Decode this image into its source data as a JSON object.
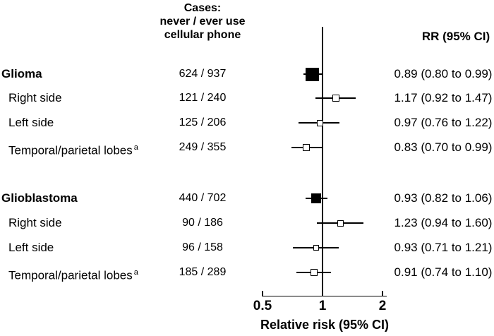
{
  "figure": {
    "background_color": "#ffffff",
    "text_color": "#000000"
  },
  "chart_data": {
    "type": "forest",
    "column_headers": {
      "cases": "Cases:\nnever / ever use\ncellular phone",
      "rr": "RR (95% CI)"
    },
    "axis": {
      "scale": "log",
      "xlim": [
        0.5,
        2
      ],
      "reference_line": 1,
      "xlabel": "Relative risk (95% CI)",
      "ticks": [
        {
          "value": 0.5,
          "label": "0.5"
        },
        {
          "value": 1,
          "label": "1"
        },
        {
          "value": 2,
          "label": "2"
        }
      ]
    },
    "rows": [
      {
        "label": "Glioma",
        "group_header": true,
        "indent": false,
        "footnote_mark": "",
        "cases_never_ever": "624 / 937",
        "rr": 0.89,
        "ci_low": 0.8,
        "ci_high": 0.99,
        "rr_text": "0.89 (0.80 to 0.99)",
        "marker": "filled-square",
        "marker_size_px": 19
      },
      {
        "label": "Right side",
        "group_header": false,
        "indent": true,
        "footnote_mark": "",
        "cases_never_ever": "121 / 240",
        "rr": 1.17,
        "ci_low": 0.92,
        "ci_high": 1.47,
        "rr_text": "1.17 (0.92 to 1.47)",
        "marker": "open-square",
        "marker_size_px": 10
      },
      {
        "label": "Left side",
        "group_header": false,
        "indent": true,
        "footnote_mark": "",
        "cases_never_ever": "125 / 206",
        "rr": 0.97,
        "ci_low": 0.76,
        "ci_high": 1.22,
        "rr_text": "0.97 (0.76 to 1.22)",
        "marker": "open-square",
        "marker_size_px": 9
      },
      {
        "label": "Temporal/parietal lobes",
        "group_header": false,
        "indent": true,
        "footnote_mark": "a",
        "cases_never_ever": "249 / 355",
        "rr": 0.83,
        "ci_low": 0.7,
        "ci_high": 0.99,
        "rr_text": "0.83 (0.70 to 0.99)",
        "marker": "open-square",
        "marker_size_px": 10
      },
      {
        "label": "Glioblastoma",
        "group_header": true,
        "indent": false,
        "footnote_mark": "",
        "cases_never_ever": "440 / 702",
        "rr": 0.93,
        "ci_low": 0.82,
        "ci_high": 1.06,
        "rr_text": "0.93 (0.82 to 1.06)",
        "marker": "filled-square",
        "marker_size_px": 14
      },
      {
        "label": "Right side",
        "group_header": false,
        "indent": true,
        "footnote_mark": "",
        "cases_never_ever": "90 / 186",
        "rr": 1.23,
        "ci_low": 0.94,
        "ci_high": 1.6,
        "rr_text": "1.23 (0.94 to 1.60)",
        "marker": "open-square",
        "marker_size_px": 9
      },
      {
        "label": "Left side",
        "group_header": false,
        "indent": true,
        "footnote_mark": "",
        "cases_never_ever": "96 / 158",
        "rr": 0.93,
        "ci_low": 0.71,
        "ci_high": 1.21,
        "rr_text": "0.93 (0.71 to 1.21)",
        "marker": "open-square",
        "marker_size_px": 8
      },
      {
        "label": "Temporal/parietal lobes",
        "group_header": false,
        "indent": true,
        "footnote_mark": "a",
        "cases_never_ever": "185 / 289",
        "rr": 0.91,
        "ci_low": 0.74,
        "ci_high": 1.1,
        "rr_text": "0.91 (0.74 to 1.10)",
        "marker": "open-square",
        "marker_size_px": 10
      }
    ]
  }
}
